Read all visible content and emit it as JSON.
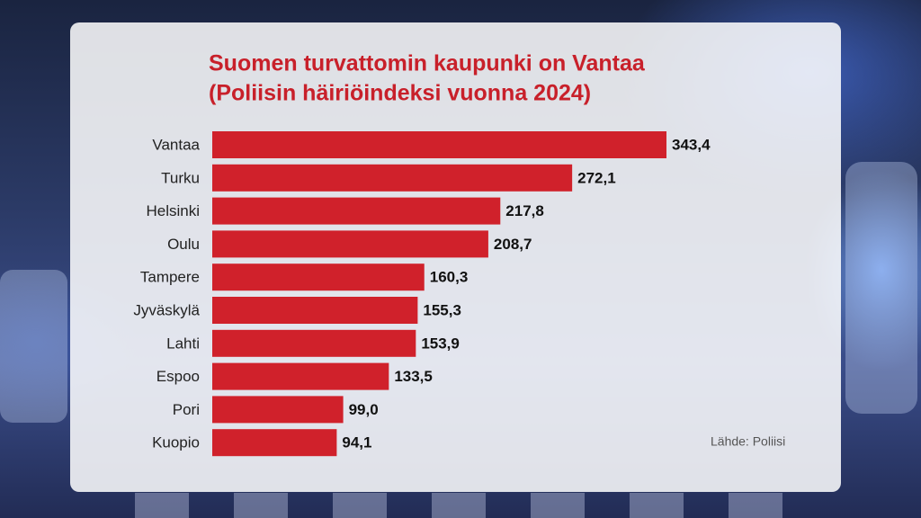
{
  "chart_data": {
    "type": "bar",
    "orientation": "horizontal",
    "title": "Suomen turvattomin kaupunki on Vantaa",
    "subtitle": "(Poliisin häiriöindeksi vuonna 2024)",
    "categories": [
      "Vantaa",
      "Turku",
      "Helsinki",
      "Oulu",
      "Tampere",
      "Jyväskylä",
      "Lahti",
      "Espoo",
      "Pori",
      "Kuopio"
    ],
    "values": [
      343.4,
      272.1,
      217.8,
      208.7,
      160.3,
      155.3,
      153.9,
      133.5,
      99.0,
      94.1
    ],
    "value_labels": [
      "343,4",
      "272,1",
      "217,8",
      "208,7",
      "160,3",
      "155,3",
      "153,9",
      "133,5",
      "99,0",
      "94,1"
    ],
    "color": "#d0212b",
    "source": "Lähde: Poliisi"
  }
}
